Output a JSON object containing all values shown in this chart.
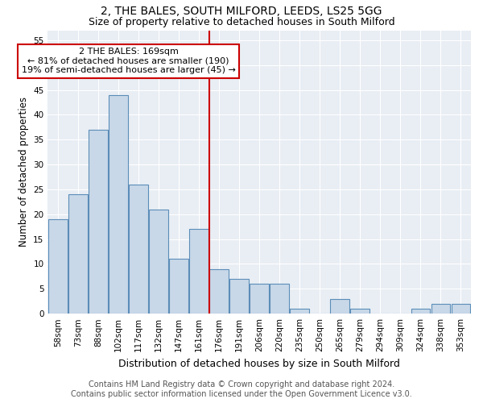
{
  "title1": "2, THE BALES, SOUTH MILFORD, LEEDS, LS25 5GG",
  "title2": "Size of property relative to detached houses in South Milford",
  "xlabel": "Distribution of detached houses by size in South Milford",
  "ylabel": "Number of detached properties",
  "footer1": "Contains HM Land Registry data © Crown copyright and database right 2024.",
  "footer2": "Contains public sector information licensed under the Open Government Licence v3.0.",
  "annotation_line1": "2 THE BALES: 169sqm",
  "annotation_line2": "← 81% of detached houses are smaller (190)",
  "annotation_line3": "19% of semi-detached houses are larger (45) →",
  "bar_labels": [
    "58sqm",
    "73sqm",
    "88sqm",
    "102sqm",
    "117sqm",
    "132sqm",
    "147sqm",
    "161sqm",
    "176sqm",
    "191sqm",
    "206sqm",
    "220sqm",
    "235sqm",
    "250sqm",
    "265sqm",
    "279sqm",
    "294sqm",
    "309sqm",
    "324sqm",
    "338sqm",
    "353sqm"
  ],
  "bar_values": [
    19,
    24,
    37,
    44,
    26,
    21,
    11,
    17,
    9,
    7,
    6,
    6,
    1,
    0,
    3,
    1,
    0,
    0,
    1,
    2,
    2
  ],
  "bar_color": "#c8d8e8",
  "bar_edge_color": "#5b8db8",
  "vline_x": 7.5,
  "vline_color": "#cc0000",
  "ylim": [
    0,
    57
  ],
  "yticks": [
    0,
    5,
    10,
    15,
    20,
    25,
    30,
    35,
    40,
    45,
    50,
    55
  ],
  "annotation_box_color": "#cc0000",
  "bg_color": "#e8eef4",
  "grid_color": "#ffffff",
  "title1_fontsize": 10,
  "title2_fontsize": 9,
  "xlabel_fontsize": 9,
  "ylabel_fontsize": 8.5,
  "tick_fontsize": 7.5,
  "footer_fontsize": 7,
  "annot_fontsize": 8
}
